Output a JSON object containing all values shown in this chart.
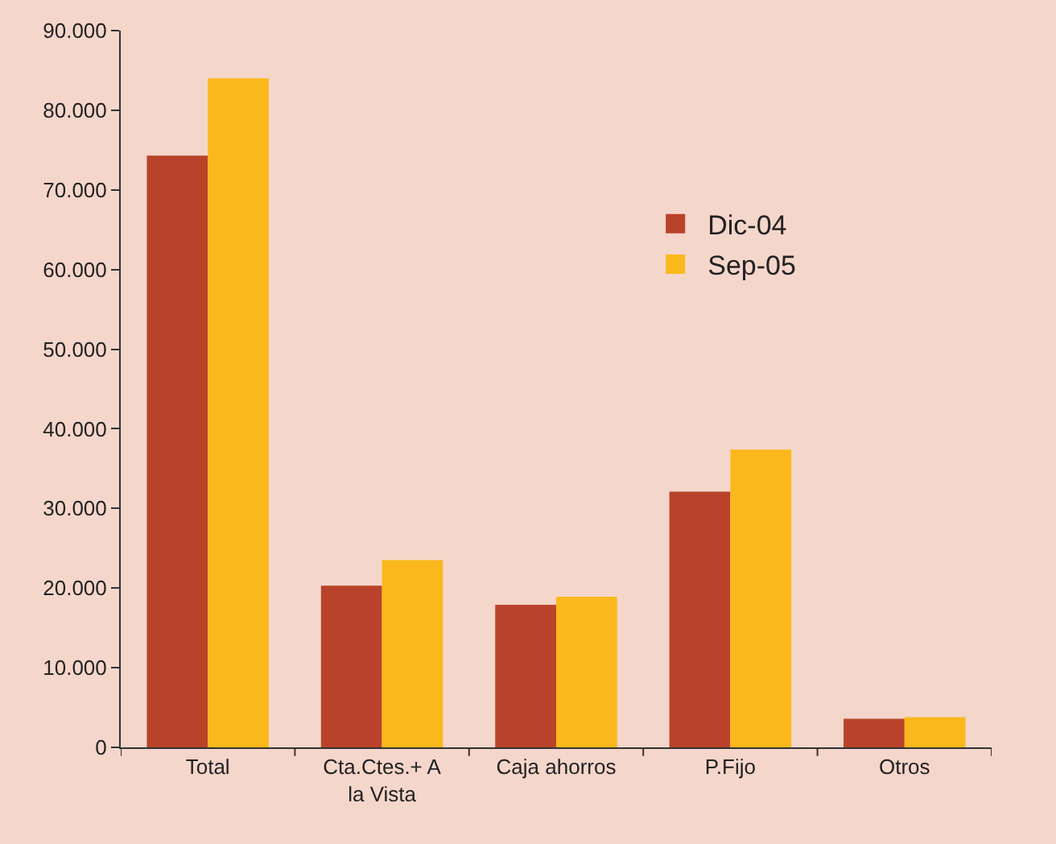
{
  "chart_data": {
    "type": "bar",
    "categories": [
      "Total",
      "Cta.Ctes.+ A la Vista",
      "Caja ahorros",
      "P.Fijo",
      "Otros"
    ],
    "series": [
      {
        "name": "Dic-04",
        "color": "#b9432a",
        "values": [
          74300,
          20300,
          17900,
          32100,
          3600
        ]
      },
      {
        "name": "Sep-05",
        "color": "#fbb81c",
        "values": [
          84000,
          23500,
          18900,
          37400,
          3800
        ]
      }
    ],
    "ylim": [
      0,
      90000
    ],
    "yticks": [
      {
        "value": 0,
        "label": "0"
      },
      {
        "value": 10000,
        "label": "10.000"
      },
      {
        "value": 20000,
        "label": "20.000"
      },
      {
        "value": 30000,
        "label": "30.000"
      },
      {
        "value": 40000,
        "label": "40.000"
      },
      {
        "value": 50000,
        "label": "50.000"
      },
      {
        "value": 60000,
        "label": "60.000"
      },
      {
        "value": 70000,
        "label": "70.000"
      },
      {
        "value": 80000,
        "label": "80.000"
      },
      {
        "value": 90000,
        "label": "90.000"
      }
    ],
    "grid": false,
    "legend": "top right"
  }
}
